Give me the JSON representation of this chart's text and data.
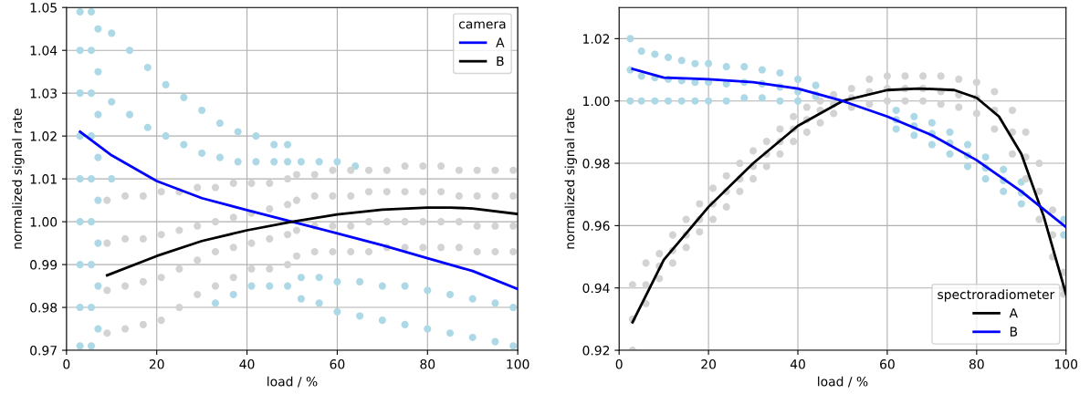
{
  "chart_data": [
    {
      "type": "line",
      "xlabel": "load / %",
      "ylabel": "normalized signal rate",
      "legend_title": "camera",
      "legend": "top right",
      "grid": true,
      "line_style": "solid",
      "xlim": [
        0,
        100
      ],
      "xticks": [
        0,
        20,
        40,
        60,
        80,
        100
      ],
      "ylim": [
        0.97,
        1.05
      ],
      "yticks": [
        {
          "value": 0.97,
          "label": "0.97"
        },
        {
          "value": 0.98,
          "label": "0.98"
        },
        {
          "value": 0.99,
          "label": "0.99"
        },
        {
          "value": 1.0,
          "label": "1.00"
        },
        {
          "value": 1.01,
          "label": "1.01"
        },
        {
          "value": 1.02,
          "label": "1.02"
        },
        {
          "value": 1.03,
          "label": "1.03"
        },
        {
          "value": 1.04,
          "label": "1.04"
        },
        {
          "value": 1.05,
          "label": "1.05"
        }
      ],
      "series": [
        {
          "type": "scatter",
          "color": "#add8e6",
          "x": [
            3,
            3,
            3,
            3,
            3,
            3,
            3,
            3,
            3,
            5.5,
            5.5,
            5.5,
            5.5,
            5.5,
            5.5,
            5.5,
            5.5,
            5.5,
            7,
            7,
            7,
            7,
            7,
            7,
            7,
            7,
            10,
            10,
            10,
            14,
            14,
            18,
            18,
            22,
            22,
            26,
            26,
            30,
            30,
            34,
            34,
            38,
            38,
            42,
            42,
            46,
            46,
            49,
            49,
            33,
            37,
            41,
            45,
            49,
            52,
            52,
            56,
            56,
            60,
            60,
            65,
            65,
            70,
            70,
            75,
            75,
            80,
            80,
            85,
            85,
            90,
            90,
            95,
            95,
            99,
            99,
            52,
            56,
            60,
            64
          ],
          "values": [
            0.971,
            0.98,
            0.99,
            1.0,
            1.01,
            1.02,
            1.03,
            1.04,
            1.049,
            0.971,
            0.98,
            0.99,
            1.0,
            1.01,
            1.02,
            1.03,
            1.04,
            1.049,
            0.975,
            0.985,
            0.995,
            1.005,
            1.015,
            1.025,
            1.035,
            1.045,
            1.044,
            1.028,
            1.01,
            1.04,
            1.025,
            1.036,
            1.022,
            1.032,
            1.02,
            1.029,
            1.018,
            1.026,
            1.016,
            1.023,
            1.015,
            1.021,
            1.014,
            1.02,
            1.014,
            1.018,
            1.014,
            1.018,
            1.014,
            0.981,
            0.983,
            0.985,
            0.985,
            0.985,
            0.982,
            0.987,
            0.981,
            0.987,
            0.979,
            0.986,
            0.978,
            0.986,
            0.977,
            0.985,
            0.976,
            0.985,
            0.975,
            0.984,
            0.974,
            0.983,
            0.973,
            0.982,
            0.972,
            0.981,
            0.971,
            0.98,
            1.014,
            1.014,
            1.014,
            1.013
          ]
        },
        {
          "type": "scatter",
          "color": "#d3d3d3",
          "x": [
            9,
            13,
            17,
            21,
            25,
            29,
            33,
            37,
            41,
            45,
            49,
            51,
            55,
            59,
            63,
            67,
            71,
            75,
            79,
            83,
            87,
            91,
            95,
            99,
            9,
            13,
            17,
            21,
            25,
            29,
            33,
            37,
            41,
            45,
            49,
            51,
            55,
            59,
            63,
            67,
            71,
            75,
            79,
            83,
            87,
            91,
            95,
            99,
            9,
            13,
            17,
            21,
            25,
            29,
            33,
            37,
            41,
            45,
            49,
            51,
            55,
            59,
            63,
            67,
            71,
            75,
            79,
            83,
            87,
            91,
            95,
            99,
            9,
            13,
            17,
            21,
            25,
            29,
            33,
            37,
            41,
            45,
            49,
            51,
            55,
            59,
            63,
            67,
            71,
            75,
            79,
            83,
            87,
            91,
            95,
            99
          ],
          "values": [
            0.974,
            0.975,
            0.976,
            0.977,
            0.98,
            0.983,
            0.985,
            0.987,
            0.989,
            0.989,
            0.99,
            0.992,
            0.993,
            0.993,
            0.993,
            0.993,
            0.994,
            0.994,
            0.994,
            0.994,
            0.994,
            0.993,
            0.993,
            0.993,
            0.984,
            0.985,
            0.986,
            0.987,
            0.989,
            0.991,
            0.993,
            0.994,
            0.995,
            0.996,
            0.997,
            0.998,
            0.999,
            0.999,
            0.999,
            1.0,
            1.0,
            1.0,
            1.0,
            1.0,
            1.0,
            0.999,
            0.999,
            0.999,
            0.995,
            0.996,
            0.996,
            0.997,
            0.998,
            0.999,
            1.0,
            1.001,
            1.002,
            1.003,
            1.004,
            1.005,
            1.006,
            1.006,
            1.006,
            1.007,
            1.007,
            1.007,
            1.007,
            1.007,
            1.006,
            1.006,
            1.006,
            1.006,
            1.005,
            1.006,
            1.006,
            1.007,
            1.007,
            1.008,
            1.008,
            1.009,
            1.009,
            1.009,
            1.01,
            1.011,
            1.011,
            1.012,
            1.012,
            1.012,
            1.012,
            1.013,
            1.013,
            1.013,
            1.012,
            1.012,
            1.012,
            1.012
          ]
        },
        {
          "name": "A",
          "color": "#0000ff",
          "x": [
            3,
            10,
            20,
            30,
            40,
            50,
            60,
            70,
            80,
            90,
            100
          ],
          "values": [
            1.021,
            1.0155,
            1.0095,
            1.0055,
            1.0027,
            1.0,
            0.9973,
            0.9945,
            0.9915,
            0.9885,
            0.9843
          ]
        },
        {
          "name": "B",
          "color": "#000000",
          "x": [
            9,
            20,
            30,
            40,
            50,
            60,
            70,
            80,
            85,
            90,
            100
          ],
          "values": [
            0.9875,
            0.992,
            0.9955,
            0.998,
            1.0,
            1.0017,
            1.0028,
            1.0033,
            1.0033,
            1.0031,
            1.0018
          ]
        }
      ]
    },
    {
      "type": "line",
      "xlabel": "load / %",
      "ylabel": "normalized signal rate",
      "legend_title": "spectroradiometer",
      "legend": "bottom right",
      "grid": true,
      "line_style": "solid",
      "xlim": [
        0,
        100
      ],
      "xticks": [
        0,
        20,
        40,
        60,
        80,
        100
      ],
      "ylim": [
        0.92,
        1.03
      ],
      "yticks": [
        {
          "value": 0.92,
          "label": "0.92"
        },
        {
          "value": 0.94,
          "label": "0.94"
        },
        {
          "value": 0.96,
          "label": "0.96"
        },
        {
          "value": 0.98,
          "label": "0.98"
        },
        {
          "value": 1.0,
          "label": "1.00"
        },
        {
          "value": 1.02,
          "label": "1.02"
        }
      ],
      "series": [
        {
          "type": "scatter",
          "color": "#add8e6",
          "x": [
            2.5,
            5,
            8,
            11,
            14,
            17,
            20,
            24,
            28,
            32,
            36,
            40,
            44,
            62,
            66,
            70,
            74,
            78,
            82,
            86,
            90,
            99.5,
            2.5,
            5,
            8,
            11,
            14,
            17,
            20,
            24,
            28,
            32,
            36,
            40,
            44,
            62,
            66,
            70,
            74,
            78,
            82,
            86,
            90,
            99.5,
            2.5,
            5,
            8,
            11,
            14,
            17,
            20,
            24,
            28,
            32,
            36,
            40,
            44,
            62,
            66,
            70,
            74,
            78,
            82,
            86,
            90
          ],
          "values": [
            1.02,
            1.016,
            1.015,
            1.014,
            1.013,
            1.012,
            1.012,
            1.011,
            1.011,
            1.01,
            1.009,
            1.007,
            1.005,
            0.997,
            0.995,
            0.993,
            0.99,
            0.986,
            0.982,
            0.978,
            0.974,
            0.962,
            1.0,
            1.0,
            1.0,
            1.0,
            1.0,
            1.0,
            1.0,
            1.0,
            1.001,
            1.001,
            1.0,
            1.0,
            1.002,
            0.991,
            0.989,
            0.986,
            0.983,
            0.979,
            0.975,
            0.971,
            0.967,
            0.957,
            1.01,
            1.008,
            1.0075,
            1.007,
            1.0065,
            1.006,
            1.006,
            1.0055,
            1.006,
            1.0055,
            1.0045,
            1.003,
            1.0015,
            0.994,
            0.992,
            0.9895,
            0.9865,
            0.9825,
            0.9785,
            0.9745,
            0.9705
          ]
        },
        {
          "type": "scatter",
          "color": "#d3d3d3",
          "x": [
            3,
            6,
            9,
            12,
            15,
            18,
            21,
            24,
            27,
            30,
            33,
            36,
            39,
            42,
            45,
            48,
            52,
            56,
            60,
            64,
            68,
            72,
            76,
            80,
            84,
            88,
            91,
            94,
            97,
            99.5,
            3,
            6,
            9,
            12,
            15,
            18,
            21,
            24,
            27,
            30,
            33,
            36,
            39,
            42,
            45,
            48,
            52,
            56,
            60,
            64,
            68,
            72,
            76,
            80,
            84,
            88,
            91,
            94,
            97,
            99.5,
            3,
            6,
            9,
            12,
            15,
            18,
            21,
            24,
            27,
            30,
            33,
            36,
            39,
            42,
            45,
            48,
            52,
            56,
            60,
            64,
            68,
            72,
            76,
            80,
            84,
            88,
            91,
            94,
            97,
            99.5
          ],
          "values": [
            0.941,
            0.948,
            0.951,
            0.957,
            0.962,
            0.967,
            0.972,
            0.976,
            0.98,
            0.984,
            0.987,
            0.991,
            0.995,
            0.998,
            1.0,
            1.002,
            1.004,
            1.007,
            1.008,
            1.008,
            1.008,
            1.008,
            1.007,
            1.006,
            1.003,
            0.997,
            0.99,
            0.98,
            0.965,
            0.945,
            0.92,
            0.935,
            0.943,
            0.948,
            0.953,
            0.958,
            0.962,
            0.966,
            0.971,
            0.975,
            0.979,
            0.983,
            0.987,
            0.99,
            0.993,
            0.996,
            0.998,
            0.999,
            1.0,
            1.0,
            1.0,
            0.999,
            0.998,
            0.996,
            0.991,
            0.983,
            0.975,
            0.962,
            0.95,
            0.938,
            0.93,
            0.941,
            0.947,
            0.952,
            0.957,
            0.962,
            0.967,
            0.971,
            0.975,
            0.979,
            0.983,
            0.987,
            0.991,
            0.994,
            0.997,
            0.999,
            1.001,
            1.003,
            1.004,
            1.004,
            1.004,
            1.003,
            1.002,
            1.001,
            0.997,
            0.99,
            0.982,
            0.971,
            0.957,
            0.94
          ]
        },
        {
          "name": "A",
          "color": "#000000",
          "x": [
            3,
            10,
            20,
            30,
            40,
            50,
            60,
            67,
            75,
            80,
            85,
            90,
            95,
            100
          ],
          "values": [
            0.929,
            0.949,
            0.966,
            0.98,
            0.992,
            1.0,
            1.0035,
            1.004,
            1.0035,
            1.001,
            0.995,
            0.983,
            0.963,
            0.938
          ]
        },
        {
          "name": "B",
          "color": "#0000ff",
          "x": [
            3,
            10,
            20,
            30,
            40,
            50,
            60,
            70,
            80,
            90,
            100
          ],
          "values": [
            1.0103,
            1.0075,
            1.007,
            1.006,
            1.004,
            1.0,
            0.995,
            0.989,
            0.981,
            0.971,
            0.9595
          ]
        }
      ]
    }
  ]
}
